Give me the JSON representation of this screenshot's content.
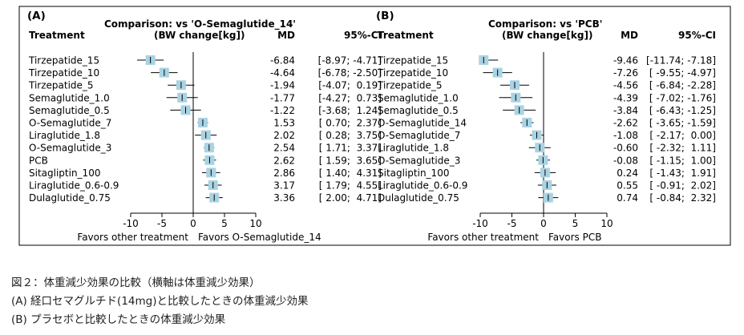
{
  "chart_data": [
    {
      "type": "forest",
      "panel_label": "(A)",
      "title": "Comparison: vs 'O-Semaglutide_14'",
      "subtitle": "(BW change[kg])",
      "col_treatment": "Treatment",
      "col_md": "MD",
      "col_ci": "95%-CI",
      "xlim": [
        -10,
        10
      ],
      "xticks": [
        -10,
        -5,
        0,
        5,
        10
      ],
      "xtick_labels": [
        "-10",
        "-5",
        "0",
        "5",
        "10"
      ],
      "favors_left": "Favors other treatment",
      "favors_right": "Favors O-Semaglutide_14",
      "rows": [
        {
          "name": "Tirzepatide_15",
          "md": -6.84,
          "lo": -8.97,
          "hi": -4.71,
          "md_text": "-6.84",
          "ci_text": "[-8.97; -4.71]"
        },
        {
          "name": "Tirzepatide_10",
          "md": -4.64,
          "lo": -6.78,
          "hi": -2.5,
          "md_text": "-4.64",
          "ci_text": "[-6.78; -2.50]"
        },
        {
          "name": "Tirzepatide_5",
          "md": -1.94,
          "lo": -4.07,
          "hi": 0.19,
          "md_text": "-1.94",
          "ci_text": "[-4.07;  0.19]"
        },
        {
          "name": "Semaglutide_1.0",
          "md": -1.77,
          "lo": -4.27,
          "hi": 0.73,
          "md_text": "-1.77",
          "ci_text": "[-4.27;  0.73]"
        },
        {
          "name": "Semaglutide_0.5",
          "md": -1.22,
          "lo": -3.68,
          "hi": 1.24,
          "md_text": "-1.22",
          "ci_text": "[-3.68;  1.24]"
        },
        {
          "name": "O-Semaglutide_7",
          "md": 1.53,
          "lo": 0.7,
          "hi": 2.37,
          "md_text": "1.53",
          "ci_text": "[ 0.70;  2.37]"
        },
        {
          "name": "Liraglutide_1.8",
          "md": 2.02,
          "lo": 0.28,
          "hi": 3.75,
          "md_text": "2.02",
          "ci_text": "[ 0.28;  3.75]"
        },
        {
          "name": "O-Semaglutide_3",
          "md": 2.54,
          "lo": 1.71,
          "hi": 3.37,
          "md_text": "2.54",
          "ci_text": "[ 1.71;  3.37]"
        },
        {
          "name": "PCB",
          "md": 2.62,
          "lo": 1.59,
          "hi": 3.65,
          "md_text": "2.62",
          "ci_text": "[ 1.59;  3.65]"
        },
        {
          "name": "Sitagliptin_100",
          "md": 2.86,
          "lo": 1.4,
          "hi": 4.31,
          "md_text": "2.86",
          "ci_text": "[ 1.40;  4.31]"
        },
        {
          "name": "Liraglutide_0.6-0.9",
          "md": 3.17,
          "lo": 1.79,
          "hi": 4.55,
          "md_text": "3.17",
          "ci_text": "[ 1.79;  4.55]"
        },
        {
          "name": "Dulaglutide_0.75",
          "md": 3.36,
          "lo": 2.0,
          "hi": 4.71,
          "md_text": "3.36",
          "ci_text": "[ 2.00;  4.71]"
        }
      ]
    },
    {
      "type": "forest",
      "panel_label": "(B)",
      "title": "Comparison: vs 'PCB'",
      "subtitle": "(BW change[kg])",
      "col_treatment": "Treatment",
      "col_md": "MD",
      "col_ci": "95%-CI",
      "xlim": [
        -10,
        10
      ],
      "xticks": [
        -10,
        -5,
        0,
        5,
        10
      ],
      "xtick_labels": [
        "-10",
        "-5",
        "0",
        "5",
        "10"
      ],
      "favors_left": "Favors other treatment",
      "favors_right": "Favors PCB",
      "rows": [
        {
          "name": "Tirzepatide_15",
          "md": -9.46,
          "lo": -11.74,
          "hi": -7.18,
          "md_text": "-9.46",
          "ci_text": "[-11.74; -7.18]"
        },
        {
          "name": "Tirzepatide_10",
          "md": -7.26,
          "lo": -9.55,
          "hi": -4.97,
          "md_text": "-7.26",
          "ci_text": "[ -9.55; -4.97]"
        },
        {
          "name": "Tirzepatide_5",
          "md": -4.56,
          "lo": -6.84,
          "hi": -2.28,
          "md_text": "-4.56",
          "ci_text": "[ -6.84; -2.28]"
        },
        {
          "name": "Semaglutide_1.0",
          "md": -4.39,
          "lo": -7.02,
          "hi": -1.76,
          "md_text": "-4.39",
          "ci_text": "[ -7.02; -1.76]"
        },
        {
          "name": "Semaglutide_0.5",
          "md": -3.84,
          "lo": -6.43,
          "hi": -1.25,
          "md_text": "-3.84",
          "ci_text": "[ -6.43; -1.25]"
        },
        {
          "name": "O-Semaglutide_14",
          "md": -2.62,
          "lo": -3.65,
          "hi": -1.59,
          "md_text": "-2.62",
          "ci_text": "[ -3.65; -1.59]"
        },
        {
          "name": "O-Semaglutide_7",
          "md": -1.08,
          "lo": -2.17,
          "hi": 0.0,
          "md_text": "-1.08",
          "ci_text": "[ -2.17;  0.00]"
        },
        {
          "name": "Liraglutide_1.8",
          "md": -0.6,
          "lo": -2.32,
          "hi": 1.11,
          "md_text": "-0.60",
          "ci_text": "[ -2.32;  1.11]"
        },
        {
          "name": "O-Semaglutide_3",
          "md": -0.08,
          "lo": -1.15,
          "hi": 1.0,
          "md_text": "-0.08",
          "ci_text": "[ -1.15;  1.00]"
        },
        {
          "name": "Sitagliptin_100",
          "md": 0.24,
          "lo": -1.43,
          "hi": 1.91,
          "md_text": "0.24",
          "ci_text": "[ -1.43;  1.91]"
        },
        {
          "name": "Liraglutide_0.6-0.9",
          "md": 0.55,
          "lo": -0.91,
          "hi": 2.02,
          "md_text": "0.55",
          "ci_text": "[ -0.91;  2.02]"
        },
        {
          "name": "Dulaglutide_0.75",
          "md": 0.74,
          "lo": -0.84,
          "hi": 2.32,
          "md_text": "0.74",
          "ci_text": "[ -0.84;  2.32]"
        }
      ]
    }
  ],
  "caption": {
    "line1": "図２：体重減少効果の比較（横軸は体重減少効果）",
    "line2": "(A) 経口セマグルチド(14mg)と比較したときの体重減少効果",
    "line3": "(B) プラセボと比較したときの体重減少効果"
  },
  "colors": {
    "square": "#a9d3e3",
    "line": "#000000",
    "frame": "#000000"
  }
}
